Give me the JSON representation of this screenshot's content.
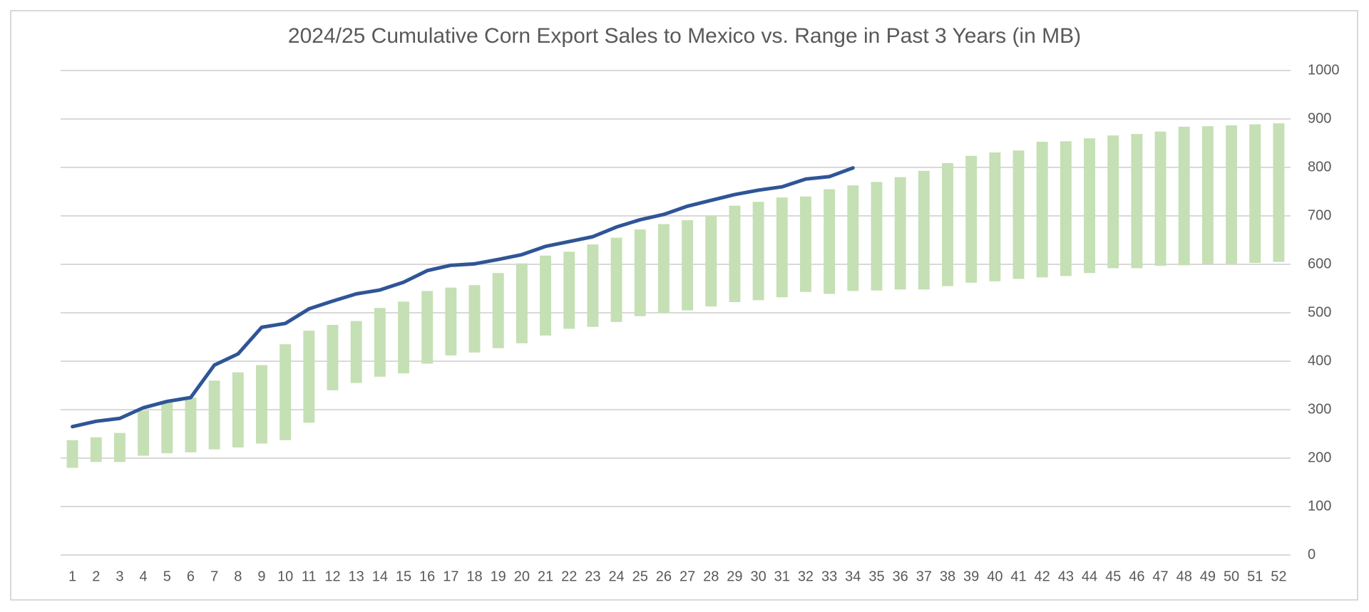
{
  "chart_data": {
    "type": "range_bar_line",
    "title": "2024/25 Cumulative Corn Export Sales to Mexico vs. Range in Past 3 Years (in MB)",
    "categories": [
      "1",
      "2",
      "3",
      "4",
      "5",
      "6",
      "7",
      "8",
      "9",
      "10",
      "11",
      "12",
      "13",
      "14",
      "15",
      "16",
      "17",
      "18",
      "19",
      "20",
      "21",
      "22",
      "23",
      "24",
      "25",
      "26",
      "27",
      "28",
      "29",
      "30",
      "31",
      "32",
      "33",
      "34",
      "35",
      "36",
      "37",
      "38",
      "39",
      "40",
      "41",
      "42",
      "43",
      "44",
      "45",
      "46",
      "47",
      "48",
      "49",
      "50",
      "51",
      "52"
    ],
    "range_low": [
      180,
      192,
      192,
      205,
      210,
      212,
      218,
      222,
      230,
      237,
      273,
      340,
      355,
      368,
      375,
      395,
      412,
      418,
      427,
      437,
      453,
      467,
      471,
      481,
      493,
      500,
      505,
      513,
      522,
      526,
      532,
      543,
      539,
      545,
      546,
      548,
      548,
      555,
      562,
      565,
      570,
      573,
      576,
      582,
      592,
      592,
      597,
      598,
      600,
      601,
      603,
      605
    ],
    "range_high": [
      237,
      243,
      252,
      298,
      315,
      325,
      360,
      377,
      392,
      435,
      463,
      475,
      483,
      510,
      523,
      545,
      552,
      557,
      582,
      602,
      618,
      626,
      641,
      655,
      672,
      683,
      691,
      700,
      721,
      729,
      738,
      740,
      755,
      763,
      770,
      780,
      793,
      809,
      824,
      831,
      835,
      853,
      854,
      860,
      866,
      869,
      874,
      884,
      885,
      887,
      889,
      891
    ],
    "range_color": "#c5e0b4",
    "line_values": [
      265,
      276,
      282,
      304,
      317,
      325,
      392,
      415,
      470,
      478,
      508,
      524,
      539,
      547,
      563,
      587,
      598,
      601,
      610,
      620,
      637,
      647,
      657,
      677,
      692,
      703,
      720,
      732,
      744,
      753,
      760,
      776,
      781,
      799
    ],
    "line_color": "#2f5597",
    "ylim": [
      0,
      1000
    ],
    "yticks": [
      0,
      100,
      200,
      300,
      400,
      500,
      600,
      700,
      800,
      900,
      1000
    ],
    "grid": true,
    "y_axis_side": "right"
  }
}
